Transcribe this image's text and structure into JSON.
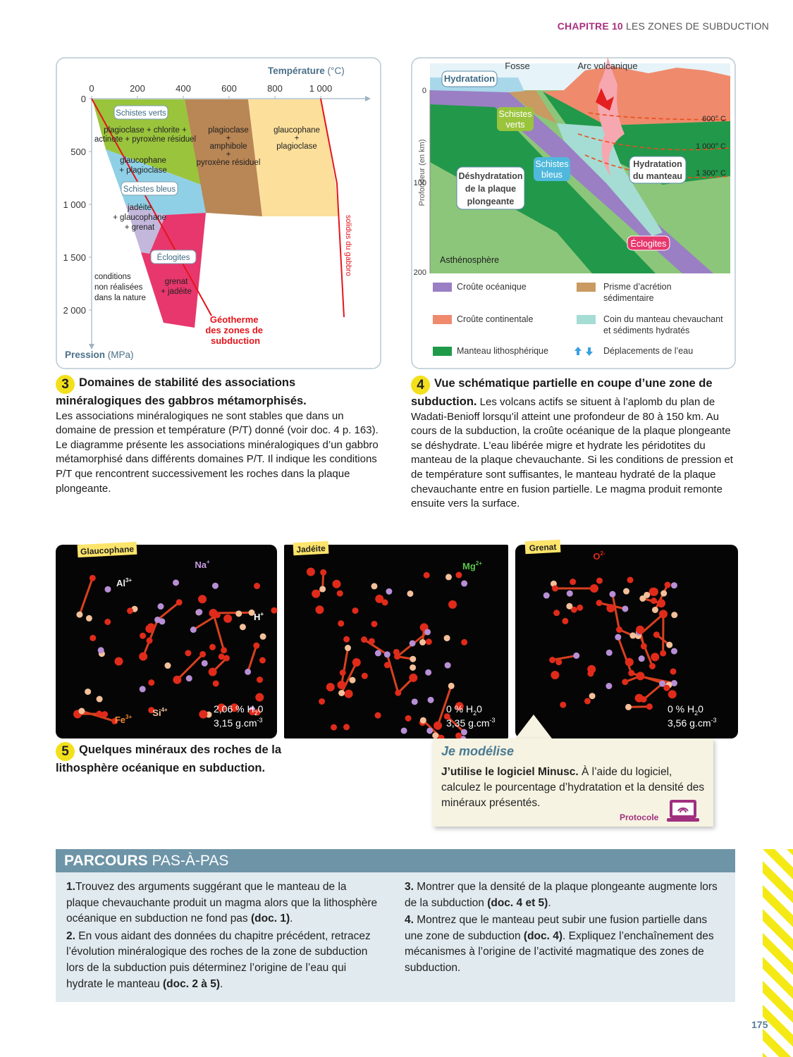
{
  "header": {
    "chapter": "CHAPITRE 10",
    "title": "LES ZONES DE SUBDUCTION"
  },
  "doc3": {
    "axis_x": {
      "label": "Température",
      "unit": "(°C)",
      "ticks": [
        "0",
        "200",
        "400",
        "600",
        "800",
        "1 000"
      ]
    },
    "axis_y": {
      "label": "Pression",
      "unit": "(MPa)",
      "ticks": [
        "0",
        "500",
        "1 000",
        "1 500",
        "2 000"
      ]
    },
    "facies": [
      "Schistes verts",
      "Schistes bleus",
      "Éclogites"
    ],
    "regions": [
      {
        "lines": [
          "plagioclase + chlorite +",
          "actinote + pyroxène résiduel"
        ]
      },
      {
        "lines": [
          "glaucophane",
          "+ plagioclase"
        ]
      },
      {
        "lines": [
          "jadéite",
          "+ glaucophane",
          "+ grenat"
        ]
      },
      {
        "lines": [
          "plagioclase",
          "+",
          "amphibole",
          "+",
          "pyroxène résiduel"
        ]
      },
      {
        "lines": [
          "glaucophane",
          "+",
          "plagioclase"
        ]
      },
      {
        "lines": [
          "grenat",
          "+ jadéite"
        ]
      },
      {
        "lines": [
          "conditions",
          "non réalisées",
          "dans la nature"
        ]
      }
    ],
    "solidus": "solidus du gabbro",
    "geotherm": [
      "Géotherme",
      "des zones de",
      "subduction"
    ],
    "caption": {
      "number": "3",
      "title": "Domaines de stabilité des associations minéralogiques des gabbros métamorphisés.",
      "text": "Les associations minéralogiques ne sont stables que dans un domaine de pression et température (P/T) donné (voir doc. 4 p. 163). Le diagramme présente les associations minéralogiques d’un gabbro métamorphisé dans différents domaines P/T. Il indique les conditions P/T que rencontrent successivement les roches dans la plaque plongeante."
    }
  },
  "doc4": {
    "axis_label": "Profondeur (en km)",
    "ticks": [
      "0",
      "100",
      "200"
    ],
    "labels": {
      "hydratation": "Hydratation",
      "fosse": "Fosse",
      "arc": "Arc volcanique",
      "schistes_verts": [
        "Schistes",
        "verts"
      ],
      "schistes_bleus": [
        "Schistes",
        "bleus"
      ],
      "deshydratation": [
        "Déshydratation",
        "de la plaque",
        "plongeante"
      ],
      "hydratation_manteau": [
        "Hydratation",
        "du manteau"
      ],
      "eclogites": "Éclogites",
      "asthenosphere": "Asthénosphère",
      "isothermes": [
        "600° C",
        "1 000° C",
        "1 300° C"
      ]
    },
    "legend": [
      {
        "lines": [
          "Croûte océanique"
        ]
      },
      {
        "lines": [
          "Prisme d’acrétion",
          "sédimentaire"
        ]
      },
      {
        "lines": [
          "Croûte continentale"
        ]
      },
      {
        "lines": [
          "Coin du manteau chevauchant",
          "et sédiments hydratés"
        ]
      },
      {
        "lines": [
          "Manteau lithosphérique"
        ]
      },
      {
        "lines": [
          "Déplacements de l’eau"
        ]
      }
    ],
    "caption": {
      "number": "4",
      "title": "Vue schématique partielle en coupe d’une zone de subduction.",
      "text": "Les volcans actifs se situent à l’aplomb du plan de Wadati-Benioff lorsqu’il atteint une profondeur de 80 à 150 km. Au cours de la subduction, la croûte océanique de la plaque plongeante se déshydrate. L’eau libérée migre et hydrate les péridotites du manteau de la plaque chevauchante. Si les conditions de pression et de température sont suffisantes, le manteau hydraté de la plaque chevauchante entre en fusion partielle. Le magma produit remonte ensuite vers la surface."
    }
  },
  "doc5": {
    "minerals": [
      {
        "name": "Glaucophane",
        "ions": [
          {
            "base": "Al",
            "sup": "3+"
          },
          {
            "base": "Na",
            "sup": "+"
          },
          {
            "base": "H",
            "sup": "+"
          },
          {
            "base": "Fe",
            "sup": "3+"
          },
          {
            "base": "Si",
            "sup": "4+"
          }
        ],
        "water": {
          "before": "2,06 % H",
          "sub": "2",
          "after": "0"
        },
        "density": {
          "base": "3,15 g.cm",
          "sup": "-3"
        }
      },
      {
        "name": "Jadéite",
        "ions": [
          {
            "base": "Mg",
            "sup": "2+"
          }
        ],
        "water": {
          "before": "0 % H",
          "sub": "2",
          "after": "0"
        },
        "density": {
          "base": "3,35 g.cm",
          "sup": "-3"
        }
      },
      {
        "name": "Grenat",
        "ions": [
          {
            "base": "O",
            "sup": "2-"
          }
        ],
        "water": {
          "before": "0 % H",
          "sub": "2",
          "after": "0"
        },
        "density": {
          "base": "3,56 g.cm",
          "sup": "-3"
        }
      }
    ],
    "caption": {
      "number": "5",
      "title": "Quelques minéraux des roches de la lithosphère océanique en subduction."
    }
  },
  "modelise": {
    "title": "Je modélise",
    "bold": "J’utilise le logiciel Minusc.",
    "text": " À l’aide du logiciel, calculez le pourcentage d’hydratation et la densité des minéraux présentés.",
    "link": "Protocole"
  },
  "parcours": {
    "title_bold": "PARCOURS",
    "title_light": " PAS-À-PAS",
    "items": [
      {
        "number": "1.",
        "parts": [
          "Trouvez des arguments suggérant que le manteau de la plaque chevauchante produit un magma alors que la lithosphère océanique en subduction ne fond pas ",
          " (doc. 1)",
          "."
        ]
      },
      {
        "number": "2.",
        "parts": [
          " En vous aidant des données du chapitre précédent, retracez l’évolution minéralogique des roches de la zone de subduction lors de la subduction puis déterminez l’origine de l’eau qui hydrate le manteau ",
          "(doc. 2 à 5)",
          "."
        ]
      },
      {
        "number": "3.",
        "parts": [
          " Montrer que la densité de la plaque plongeante augmente lors de la subduction ",
          "(doc. 4 et 5)",
          "."
        ]
      },
      {
        "number": "4.",
        "parts": [
          " Montrez que le manteau peut subir une fusion partielle dans une zone de subduction ",
          "(doc. 4)",
          ". Expliquez l’enchaînement des mécanismes à l’origine de l’activité magmatique des zones de subduction."
        ]
      }
    ]
  },
  "page_number": "175"
}
